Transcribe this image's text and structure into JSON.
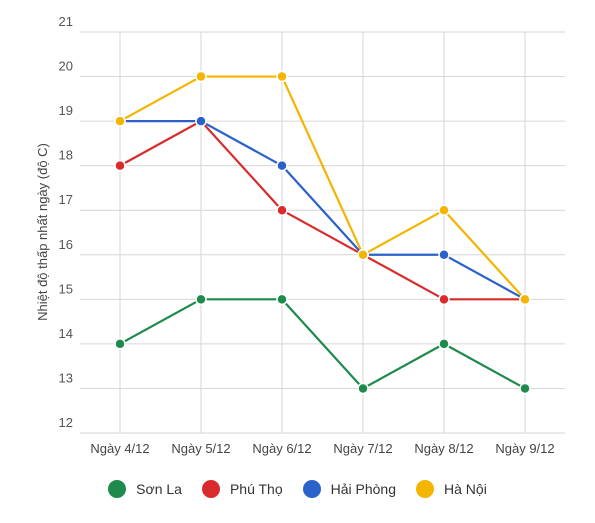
{
  "chart_data": {
    "type": "line",
    "title": "",
    "xlabel": "",
    "ylabel": "Nhiệt độ thấp nhất ngày (độ C)",
    "categories": [
      "Ngày 4/12",
      "Ngày 5/12",
      "Ngày 6/12",
      "Ngày 7/12",
      "Ngày 8/12",
      "Ngày 9/12"
    ],
    "ylim": [
      12,
      21
    ],
    "yticks": [
      21,
      20,
      19,
      18,
      17,
      16,
      15,
      14,
      13,
      12
    ],
    "grid": true,
    "legend_position": "bottom",
    "series": [
      {
        "name": "Sơn La",
        "color": "#1e8a4c",
        "values": [
          14,
          15,
          15,
          13,
          14,
          13
        ]
      },
      {
        "name": "Phú Thọ",
        "color": "#d92b2b",
        "values": [
          18,
          19,
          17,
          16,
          15,
          15
        ]
      },
      {
        "name": "Hải Phòng",
        "color": "#2a62c9",
        "values": [
          19,
          19,
          18,
          16,
          16,
          15
        ]
      },
      {
        "name": "Hà Nội",
        "color": "#f4b400",
        "values": [
          19,
          20,
          20,
          16,
          17,
          15
        ]
      }
    ]
  }
}
